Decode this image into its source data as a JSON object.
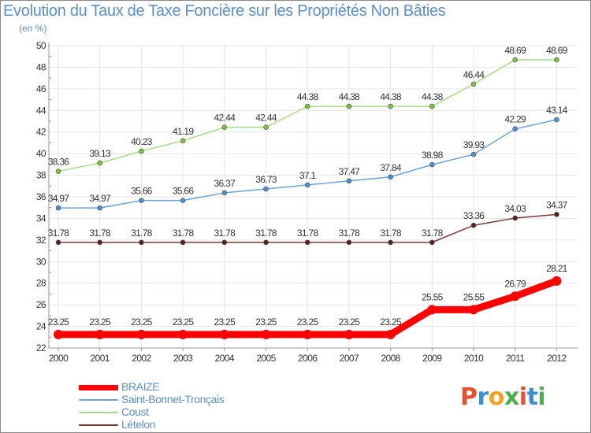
{
  "header": {
    "title": "Evolution du Taux de Taxe Foncière sur les Propriétés Non Bâties",
    "unit": "(en %)"
  },
  "brand": {
    "letters": [
      "P",
      "r",
      "o",
      "x",
      "i",
      "t",
      "i"
    ],
    "colors": [
      "#e8502d",
      "#3d8fd1",
      "#f2a21d",
      "#4bb04b",
      "#e8502d",
      "#3d8fd1",
      "#4bb04b"
    ]
  },
  "chart_data": {
    "type": "line",
    "title": "Evolution du Taux de Taxe Foncière sur les Propriétés Non Bâties",
    "ylabel": "(en %)",
    "xlabel": "",
    "categories": [
      "2000",
      "2001",
      "2002",
      "2003",
      "2004",
      "2005",
      "2006",
      "2007",
      "2008",
      "2009",
      "2010",
      "2011",
      "2012"
    ],
    "ylim": [
      22,
      50
    ],
    "yticks": [
      22,
      24,
      26,
      28,
      30,
      32,
      34,
      36,
      38,
      40,
      42,
      44,
      46,
      48,
      50
    ],
    "grid": true,
    "legend_position": "bottom",
    "series": [
      {
        "name": "BRAIZE",
        "color": "#ff0000",
        "marker_color": "#ff0000",
        "emphasis": true,
        "values": [
          23.25,
          23.25,
          23.25,
          23.25,
          23.25,
          23.25,
          23.25,
          23.25,
          23.25,
          25.55,
          25.55,
          26.79,
          28.21
        ],
        "labels": [
          "23.25",
          "23.25",
          "23.25",
          "23.25",
          "23.25",
          "23.25",
          "23.25",
          "23.25",
          "23.25",
          "25.55",
          "25.55",
          "26.79",
          "28.21"
        ]
      },
      {
        "name": "Saint-Bonnet-Tronçais",
        "color": "#6ea3d6",
        "marker_color": "#4f8fce",
        "emphasis": false,
        "values": [
          34.97,
          34.97,
          35.66,
          35.66,
          36.37,
          36.73,
          37.1,
          37.47,
          37.84,
          38.98,
          39.93,
          42.29,
          43.14
        ],
        "labels": [
          "34.97",
          "34.97",
          "35.66",
          "35.66",
          "36.37",
          "36.73",
          "37.1",
          "37.47",
          "37.84",
          "38.98",
          "39.93",
          "42.29",
          "43.14"
        ]
      },
      {
        "name": "Coust",
        "color": "#a6db86",
        "marker_color": "#7cc13f",
        "emphasis": false,
        "values": [
          38.36,
          39.13,
          40.23,
          41.19,
          42.44,
          42.44,
          44.38,
          44.38,
          44.38,
          44.38,
          46.44,
          48.69,
          48.69
        ],
        "labels": [
          "38.36",
          "39.13",
          "40.23",
          "41.19",
          "42.44",
          "42.44",
          "44.38",
          "44.38",
          "44.38",
          "44.38",
          "46.44",
          "48.69",
          "48.69"
        ]
      },
      {
        "name": "Lételon",
        "color": "#7a3a3a",
        "marker_color": "#5a1e1e",
        "emphasis": false,
        "values": [
          31.78,
          31.78,
          31.78,
          31.78,
          31.78,
          31.78,
          31.78,
          31.78,
          31.78,
          31.78,
          33.36,
          34.03,
          34.37
        ],
        "labels": [
          "31.78",
          "31.78",
          "31.78",
          "31.78",
          "31.78",
          "31.78",
          "31.78",
          "31.78",
          "31.78",
          "31.78",
          "33.36",
          "34.03",
          "34.37"
        ]
      }
    ]
  }
}
